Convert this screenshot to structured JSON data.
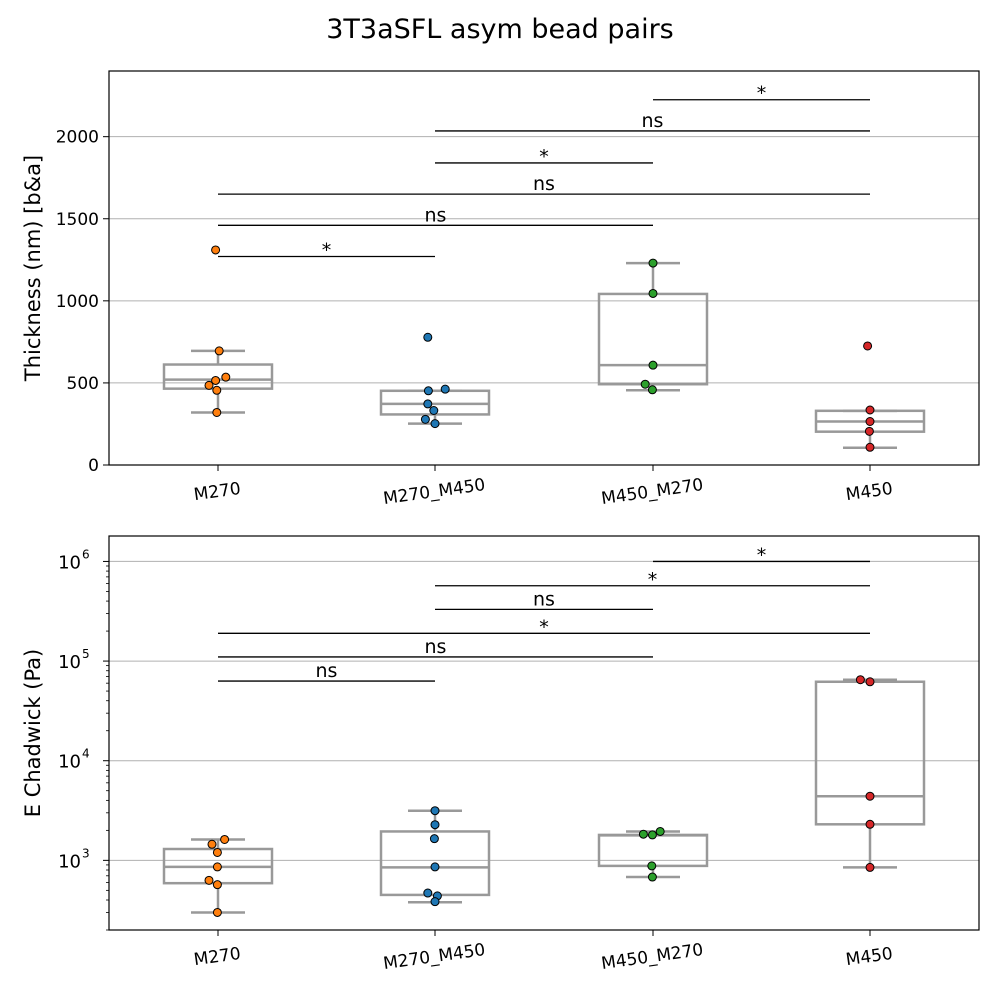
{
  "figure": {
    "title": "3T3aSFL asym bead pairs"
  },
  "chart_data": [
    {
      "type": "box",
      "ylabel": "Thickness (nm) [b&a]",
      "yscale": "linear",
      "ylim": [
        0,
        2400
      ],
      "yticks": [
        0,
        500,
        1000,
        1500,
        2000
      ],
      "ytick_labels": [
        "0",
        "500",
        "1000",
        "1500",
        "2000"
      ],
      "grid": "horizontal",
      "categories": [
        "M270",
        "M270_M450",
        "M450_M270",
        "M450"
      ],
      "colors": {
        "M270": "#ff7f0e",
        "M270_M450": "#1f77b4",
        "M450_M270": "#2ca02c",
        "M450": "#d62728"
      },
      "boxes": [
        {
          "category": "M270",
          "whislo": 320,
          "q1": 465,
          "med": 520,
          "q3": 612,
          "whishi": 695
        },
        {
          "category": "M270_M450",
          "whislo": 252,
          "q1": 308,
          "med": 372,
          "q3": 452,
          "whishi": 452
        },
        {
          "category": "M450_M270",
          "whislo": 455,
          "q1": 492,
          "med": 608,
          "q3": 1042,
          "whishi": 1230
        },
        {
          "category": "M450",
          "whislo": 105,
          "q1": 203,
          "med": 265,
          "q3": 330,
          "whishi": 330
        }
      ],
      "points": [
        {
          "category": "M270",
          "values": [
            1310,
            695,
            535,
            515,
            485,
            455,
            320
          ]
        },
        {
          "category": "M270_M450",
          "values": [
            778,
            462,
            452,
            372,
            332,
            278,
            252
          ]
        },
        {
          "category": "M450_M270",
          "values": [
            1230,
            1045,
            608,
            492,
            458
          ]
        },
        {
          "category": "M450",
          "values": [
            725,
            335,
            265,
            205,
            108
          ]
        }
      ],
      "significance": [
        {
          "from": "M270",
          "to": "M270_M450",
          "label": "*",
          "y": 1270
        },
        {
          "from": "M270",
          "to": "M450_M270",
          "label": "ns",
          "y": 1460
        },
        {
          "from": "M270",
          "to": "M450",
          "label": "ns",
          "y": 1650
        },
        {
          "from": "M270_M450",
          "to": "M450_M270",
          "label": "*",
          "y": 1840
        },
        {
          "from": "M270_M450",
          "to": "M450",
          "label": "ns",
          "y": 2035
        },
        {
          "from": "M450_M270",
          "to": "M450",
          "label": "*",
          "y": 2225
        }
      ]
    },
    {
      "type": "box",
      "ylabel": "E Chadwick (Pa)",
      "yscale": "log",
      "ylim": [
        200,
        1800000
      ],
      "yticks": [
        1000,
        10000,
        100000,
        1000000
      ],
      "ytick_labels": [
        {
          "base": "10",
          "exp": "3"
        },
        {
          "base": "10",
          "exp": "4"
        },
        {
          "base": "10",
          "exp": "5"
        },
        {
          "base": "10",
          "exp": "6"
        }
      ],
      "grid": "horizontal",
      "categories": [
        "M270",
        "M270_M450",
        "M450_M270",
        "M450"
      ],
      "colors": {
        "M270": "#ff7f0e",
        "M270_M450": "#1f77b4",
        "M450_M270": "#2ca02c",
        "M450": "#d62728"
      },
      "boxes": [
        {
          "category": "M270",
          "whislo": 300,
          "q1": 590,
          "med": 860,
          "q3": 1300,
          "whishi": 1620
        },
        {
          "category": "M270_M450",
          "whislo": 380,
          "q1": 450,
          "med": 850,
          "q3": 1950,
          "whishi": 3150
        },
        {
          "category": "M450_M270",
          "whislo": 680,
          "q1": 880,
          "med": 1780,
          "q3": 1800,
          "whishi": 1950
        },
        {
          "category": "M450",
          "whislo": 850,
          "q1": 2300,
          "med": 4400,
          "q3": 62000,
          "whishi": 65000
        }
      ],
      "points": [
        {
          "category": "M270",
          "values": [
            1620,
            1450,
            1200,
            860,
            630,
            570,
            300
          ]
        },
        {
          "category": "M270_M450",
          "values": [
            3150,
            2280,
            1650,
            860,
            470,
            440,
            385
          ]
        },
        {
          "category": "M450_M270",
          "values": [
            1950,
            1830,
            1800,
            880,
            680
          ]
        },
        {
          "category": "M450",
          "values": [
            65000,
            62000,
            4400,
            2300,
            850
          ]
        }
      ],
      "significance": [
        {
          "from": "M270",
          "to": "M270_M450",
          "label": "ns",
          "y": 63000
        },
        {
          "from": "M270",
          "to": "M450_M270",
          "label": "ns",
          "y": 110000
        },
        {
          "from": "M270",
          "to": "M450",
          "label": "*",
          "y": 190000
        },
        {
          "from": "M270_M450",
          "to": "M450_M270",
          "label": "ns",
          "y": 330000
        },
        {
          "from": "M270_M450",
          "to": "M450",
          "label": "*",
          "y": 570000
        },
        {
          "from": "M450_M270",
          "to": "M450",
          "label": "*",
          "y": 1000000
        }
      ]
    }
  ]
}
